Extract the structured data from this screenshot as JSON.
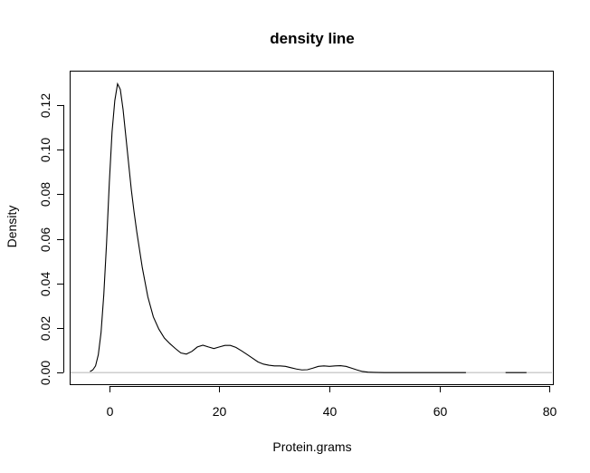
{
  "chart_data": {
    "type": "line",
    "title": "density line",
    "xlabel": "Protein.grams",
    "ylabel": "Density",
    "xlim": [
      -7.2,
      80.6
    ],
    "ylim": [
      -0.0052,
      0.1354
    ],
    "x_ticks": [
      0,
      20,
      40,
      60,
      80
    ],
    "x_tick_labels": [
      "0",
      "20",
      "40",
      "60",
      "80"
    ],
    "y_ticks": [
      0.0,
      0.02,
      0.04,
      0.06,
      0.08,
      0.1,
      0.12
    ],
    "y_tick_labels": [
      "0.00",
      "0.02",
      "0.04",
      "0.06",
      "0.08",
      "0.10",
      "0.12"
    ],
    "grid": false,
    "baseline_color": "#bdbdbd",
    "series": [
      {
        "x": [
          -3.5,
          -3.0,
          -2.5,
          -2.0,
          -1.5,
          -1.0,
          -0.5,
          0.0,
          0.5,
          1.0,
          1.5,
          2.0,
          2.5,
          3.0,
          3.5,
          4.0,
          4.5,
          5.0,
          6.0,
          7.0,
          8.0,
          9.0,
          10.0,
          11.0,
          12.0,
          13.0,
          14.0,
          15.0,
          16.0,
          17.0,
          18.0,
          19.0,
          20.0,
          21.0,
          22.0,
          23.0,
          24.0,
          25.0,
          26.0,
          27.0,
          28.0,
          29.0,
          30.0,
          31.0,
          32.0,
          33.0,
          34.0,
          35.0,
          36.0,
          37.0,
          38.0,
          39.0,
          40.0,
          41.0,
          42.0,
          43.0,
          44.0,
          45.0,
          46.0,
          47.0,
          48.0,
          50.0,
          55.0,
          60.0,
          64.8
        ],
        "y": [
          0.0005,
          0.0012,
          0.003,
          0.008,
          0.018,
          0.035,
          0.058,
          0.085,
          0.108,
          0.122,
          0.1295,
          0.127,
          0.118,
          0.106,
          0.094,
          0.082,
          0.072,
          0.063,
          0.047,
          0.034,
          0.025,
          0.0195,
          0.0155,
          0.013,
          0.0108,
          0.0088,
          0.0083,
          0.0095,
          0.0115,
          0.0123,
          0.0115,
          0.0108,
          0.0115,
          0.0122,
          0.0122,
          0.0113,
          0.0098,
          0.0082,
          0.0065,
          0.0048,
          0.0038,
          0.0033,
          0.003,
          0.003,
          0.0028,
          0.0022,
          0.0016,
          0.0012,
          0.0013,
          0.002,
          0.0028,
          0.003,
          0.0028,
          0.003,
          0.0031,
          0.0028,
          0.002,
          0.0012,
          0.0005,
          0.0002,
          0.0001,
          0.0,
          0.0,
          0.0,
          0.0
        ]
      },
      {
        "x": [
          72.0,
          73.0,
          74.0,
          75.0,
          75.8
        ],
        "y": [
          0.0,
          0.0,
          0.0,
          0.0,
          0.0
        ]
      }
    ]
  }
}
